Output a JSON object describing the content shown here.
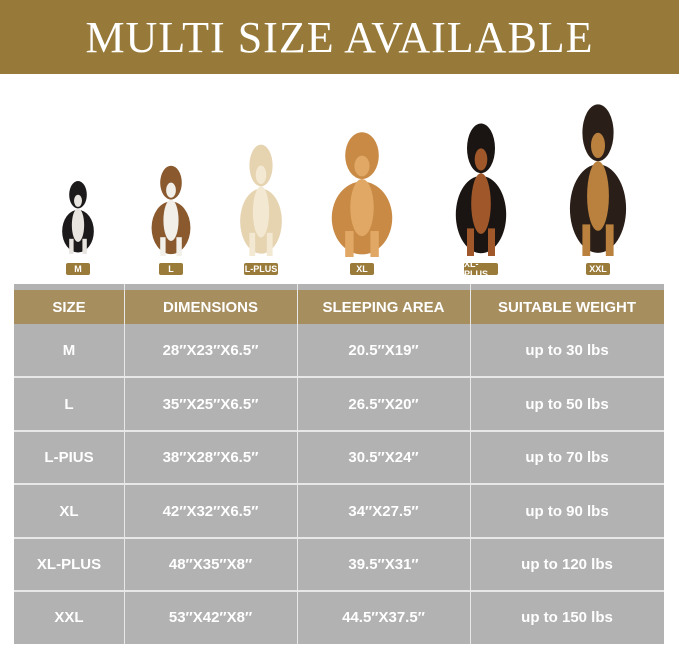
{
  "banner": {
    "title": "MULTI SIZE AVAILABLE"
  },
  "colors": {
    "gold": "#977a39",
    "header": "#a68e5e",
    "row": "#b2b2b2"
  },
  "dogs": [
    {
      "label": "M",
      "breed": "french-bulldog"
    },
    {
      "label": "L",
      "breed": "beagle"
    },
    {
      "label": "L-PLUS",
      "breed": "labrador"
    },
    {
      "label": "XL",
      "breed": "golden-retriever"
    },
    {
      "label": "XL-PLUS",
      "breed": "doberman"
    },
    {
      "label": "XXL",
      "breed": "german-shepherd"
    }
  ],
  "table": {
    "headers": [
      "SIZE",
      "DIMENSIONS",
      "SLEEPING AREA",
      "SUITABLE WEIGHT"
    ],
    "rows": [
      [
        "M",
        "28″X23″X6.5″",
        "20.5″X19″",
        "up to 30 lbs"
      ],
      [
        "L",
        "35″X25″X6.5″",
        "26.5″X20″",
        "up to 50 lbs"
      ],
      [
        "L-PIUS",
        "38″X28″X6.5″",
        "30.5″X24″",
        "up to 70 lbs"
      ],
      [
        "XL",
        "42″X32″X6.5″",
        "34″X27.5″",
        "up to 90 lbs"
      ],
      [
        "XL-PLUS",
        "48″X35″X8″",
        "39.5″X31″",
        "up to 120 lbs"
      ],
      [
        "XXL",
        "53″X42″X8″",
        "44.5″X37.5″",
        "up to 150 lbs"
      ]
    ]
  }
}
